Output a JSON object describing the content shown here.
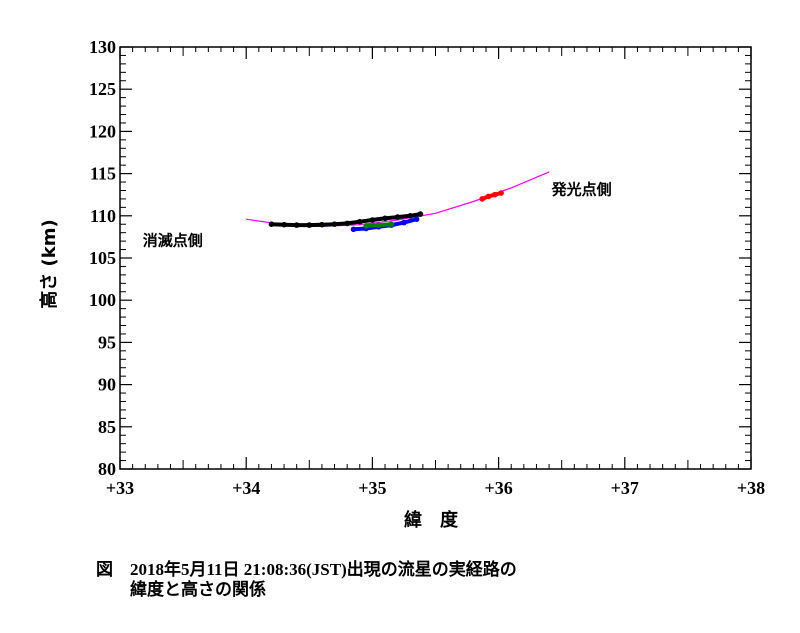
{
  "chart_data": {
    "type": "scatter",
    "xlabel": "緯　度",
    "ylabel": "高さ (km)",
    "xlim": [
      33,
      38
    ],
    "ylim": [
      80,
      130
    ],
    "x_ticks": [
      "+33",
      "+34",
      "+35",
      "+36",
      "+37",
      "+38"
    ],
    "y_ticks": [
      "80",
      "85",
      "90",
      "95",
      "100",
      "105",
      "110",
      "115",
      "120",
      "125",
      "130"
    ],
    "annotations": [
      {
        "text": "消滅点側",
        "x": 33.18,
        "y": 106.5
      },
      {
        "text": "発光点側",
        "x": 36.42,
        "y": 112.5
      }
    ],
    "series": [
      {
        "color": "#ff00ff",
        "style": "line",
        "x": [
          34.0,
          34.3,
          34.6,
          34.9,
          35.2,
          35.5,
          35.8,
          36.1,
          36.4
        ],
        "y": [
          109.6,
          108.95,
          108.75,
          108.95,
          109.5,
          110.3,
          111.7,
          113.3,
          115.2
        ]
      },
      {
        "color": "#000000",
        "style": "points",
        "x": [
          34.2,
          34.3,
          34.4,
          34.5,
          34.6,
          34.7,
          34.8,
          34.9,
          35.0,
          35.1,
          35.2,
          35.3,
          35.38
        ],
        "y": [
          109.0,
          108.95,
          108.9,
          108.9,
          108.95,
          109.0,
          109.1,
          109.3,
          109.5,
          109.7,
          109.85,
          110.0,
          110.2
        ]
      },
      {
        "color": "#0000ff",
        "style": "points",
        "x": [
          34.85,
          34.95,
          35.05,
          35.15,
          35.25,
          35.35
        ],
        "y": [
          108.4,
          108.5,
          108.7,
          108.9,
          109.2,
          109.6
        ]
      },
      {
        "color": "#008000",
        "style": "points",
        "x": [
          34.95,
          35.05,
          35.15
        ],
        "y": [
          108.8,
          108.9,
          109.0
        ]
      },
      {
        "color": "#ff0000",
        "style": "points",
        "x": [
          35.87,
          35.92,
          35.97,
          36.02
        ],
        "y": [
          112.0,
          112.3,
          112.5,
          112.7
        ]
      }
    ]
  },
  "caption": {
    "prefix": "図",
    "line1": "2018年5月11日 21:08:36(JST)出現の流星の実経路の",
    "line2": "緯度と高さの関係"
  }
}
